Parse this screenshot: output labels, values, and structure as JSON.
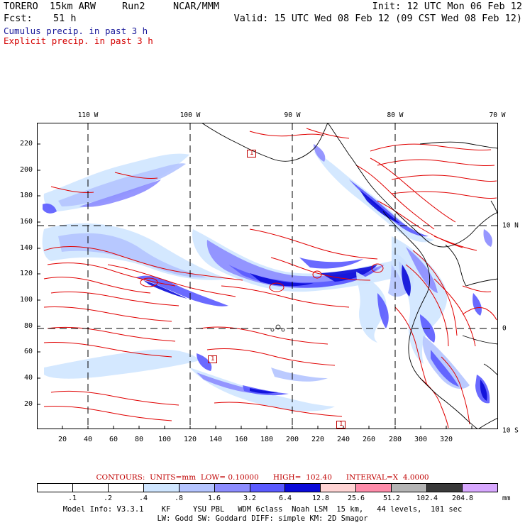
{
  "header": {
    "model_name": "TORERO  15km ARW",
    "run": "Run2",
    "org": "NCAR/MMM",
    "init": "Init: 12 UTC Mon 06 Feb 12",
    "fcst_label": "Fcst:",
    "fcst_hours": "51 h",
    "valid": "Valid: 15 UTC Wed 08 Feb 12 (09 CST Wed 08 Feb 12)",
    "field1": "Cumulus precip. in past 3 h",
    "field2": "Explicit precip. in past 3 h"
  },
  "axes": {
    "x_ticks": [
      "20",
      "40",
      "60",
      "80",
      "100",
      "120",
      "140",
      "160",
      "180",
      "200",
      "220",
      "240",
      "260",
      "280",
      "300",
      "320"
    ],
    "y_ticks": [
      "20",
      "40",
      "60",
      "80",
      "100",
      "120",
      "140",
      "160",
      "180",
      "200",
      "220"
    ],
    "lon_labels": [
      "110 W",
      "100 W",
      "90 W",
      "80 W",
      "70 W"
    ],
    "lat_labels": [
      "10 N",
      "0",
      "10 S"
    ]
  },
  "markers": [
    "1",
    "1",
    "1"
  ],
  "contours": {
    "label": "CONTOURS:",
    "units": "UNITS=mm",
    "low": "LOW= 0.10000",
    "high": "HIGH=  102.40",
    "interval": "INTERVAL=X  4.0000"
  },
  "colorbar": {
    "labels": [
      ".1",
      ".2",
      ".4",
      ".8",
      "1.6",
      "3.2",
      "6.4",
      "12.8",
      "25.6",
      "51.2",
      "102.4",
      "204.8"
    ],
    "units": "mm",
    "colors": [
      "#ffffff",
      "#ffffff",
      "#ffffff",
      "#cfe6ff",
      "#b4c4ff",
      "#8c8cff",
      "#5a5aff",
      "#0a0ad8",
      "#ffd4d4",
      "#ff8caa",
      "#b4b4b4",
      "#3a3a3a",
      "#d8a8ff"
    ]
  },
  "model_info": {
    "line1": "Model Info: V3.3.1    KF     YSU PBL   WDM 6class  Noah LSM  15 km,   44 levels,  101 sec",
    "line2": "LW: Godd SW: Goddard DIFF: simple KM: 2D Smagor"
  }
}
